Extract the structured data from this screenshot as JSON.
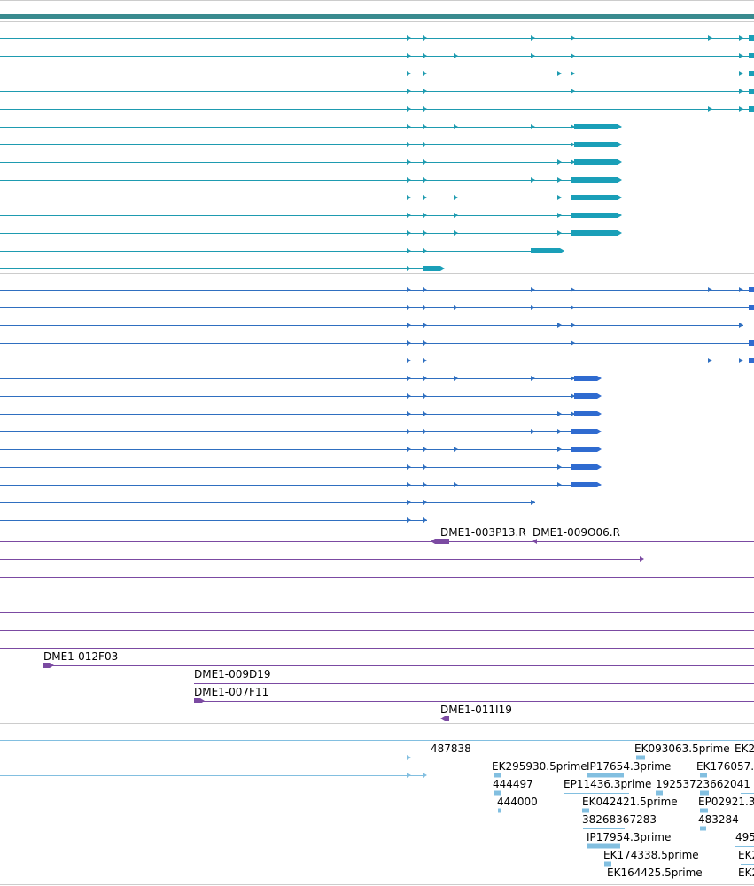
{
  "colors": {
    "gene": "#3a8b8f",
    "track1": "#1e9bb0",
    "track1_exon": "#1a9fb8",
    "track2": "#2f6fc0",
    "track2_exon": "#2f6bd0",
    "clone": "#7b4aa2",
    "est": "#82bfe0",
    "divider": "#cccccc"
  },
  "icons": {
    "strand_arrow": "triangle-right-icon",
    "reverse_arrow": "triangle-left-icon"
  },
  "clone_labels": [
    "DME1-003P13.R",
    "DME1-009O06.R",
    "DME1-012F03",
    "DME1-009D19",
    "DME1-007F11",
    "DME1-011I19"
  ],
  "est_labels": [
    "487838",
    "EK093063.5prime",
    "EK2",
    "EK295930.5prime",
    "IP17654.3prime",
    "EK176057.",
    "444497",
    "EP11436.3prime",
    "19253723662041",
    "444000",
    "EK042421.5prime",
    "EP02921.3",
    "38268367283",
    "483284",
    "IP17954.3prime",
    "495",
    "EK174338.5prime",
    "EK2",
    "EK164425.5prime",
    "EK2"
  ]
}
